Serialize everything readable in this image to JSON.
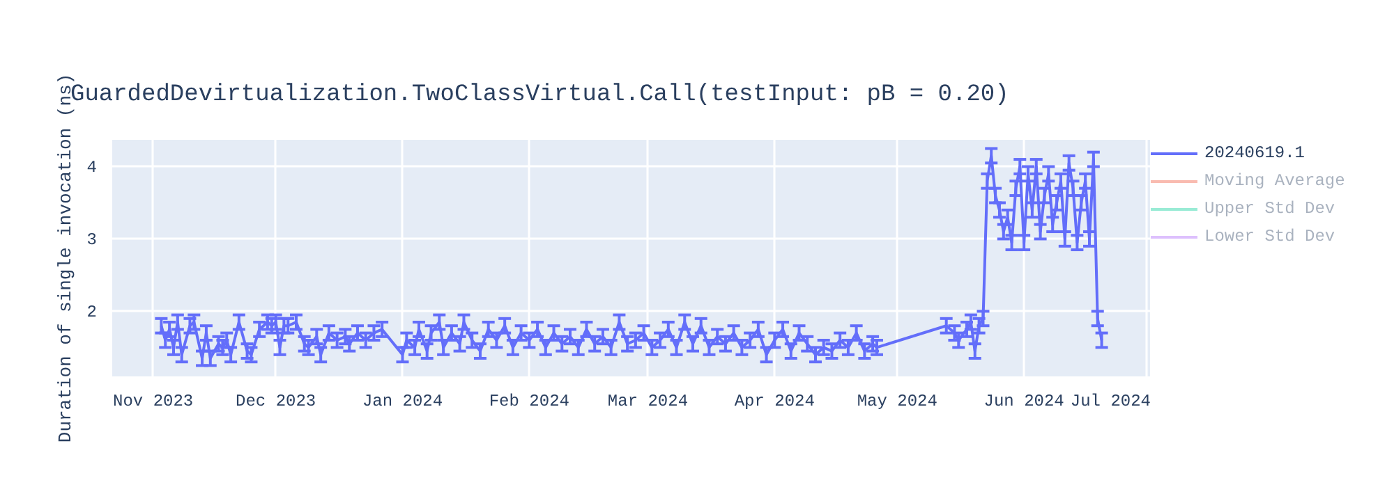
{
  "chart_data": {
    "type": "line",
    "title": "GuardedDevirtualization.TwoClassVirtual.Call(testInput: pB = 0.20)",
    "ylabel": "Duration of single invocation (ns)",
    "xlim": [
      "2023-10-22",
      "2024-07-02"
    ],
    "ylim": [
      1.1,
      4.37
    ],
    "yticks": [
      2,
      3,
      4
    ],
    "xticks": [
      {
        "value": "2023-11-01",
        "label": "Nov 2023"
      },
      {
        "value": "2023-12-01",
        "label": "Dec 2023"
      },
      {
        "value": "2024-01-01",
        "label": "Jan 2024"
      },
      {
        "value": "2024-02-01",
        "label": "Feb 2024"
      },
      {
        "value": "2024-03-01",
        "label": "Mar 2024"
      },
      {
        "value": "2024-04-01",
        "label": "Apr 2024"
      },
      {
        "value": "2024-05-01",
        "label": "May 2024"
      },
      {
        "value": "2024-06-01",
        "label": "Jun 2024"
      },
      {
        "value": "2024-07-01",
        "label": "Jul 2024"
      }
    ],
    "grid": true,
    "legend": "right",
    "marker": "none",
    "line_style": "solid",
    "x": [
      "2023-11-03",
      "2023-11-04",
      "2023-11-05",
      "2023-11-06",
      "2023-11-07",
      "2023-11-08",
      "2023-11-10",
      "2023-11-11",
      "2023-11-13",
      "2023-11-14",
      "2023-11-15",
      "2023-11-17",
      "2023-11-18",
      "2023-11-19",
      "2023-11-20",
      "2023-11-22",
      "2023-11-24",
      "2023-11-25",
      "2023-11-27",
      "2023-11-29",
      "2023-11-30",
      "2023-12-01",
      "2023-12-02",
      "2023-12-03",
      "2023-12-04",
      "2023-12-06",
      "2023-12-08",
      "2023-12-09",
      "2023-12-11",
      "2023-12-12",
      "2023-12-14",
      "2023-12-16",
      "2023-12-18",
      "2023-12-19",
      "2023-12-21",
      "2023-12-23",
      "2023-12-25",
      "2023-12-27",
      "2024-01-01",
      "2024-01-02",
      "2024-01-04",
      "2024-01-05",
      "2024-01-07",
      "2024-01-08",
      "2024-01-10",
      "2024-01-11",
      "2024-01-13",
      "2024-01-15",
      "2024-01-16",
      "2024-01-18",
      "2024-01-20",
      "2024-01-22",
      "2024-01-24",
      "2024-01-26",
      "2024-01-28",
      "2024-01-30",
      "2024-02-01",
      "2024-02-03",
      "2024-02-05",
      "2024-02-07",
      "2024-02-09",
      "2024-02-11",
      "2024-02-13",
      "2024-02-15",
      "2024-02-17",
      "2024-02-19",
      "2024-02-21",
      "2024-02-23",
      "2024-02-25",
      "2024-02-27",
      "2024-02-29",
      "2024-03-02",
      "2024-03-04",
      "2024-03-06",
      "2024-03-08",
      "2024-03-10",
      "2024-03-12",
      "2024-03-14",
      "2024-03-16",
      "2024-03-18",
      "2024-03-20",
      "2024-03-22",
      "2024-03-24",
      "2024-03-26",
      "2024-03-28",
      "2024-03-30",
      "2024-04-01",
      "2024-04-03",
      "2024-04-05",
      "2024-04-07",
      "2024-04-09",
      "2024-04-11",
      "2024-04-13",
      "2024-04-15",
      "2024-04-17",
      "2024-04-19",
      "2024-04-21",
      "2024-04-23",
      "2024-04-25",
      "2024-04-26",
      "2024-05-13",
      "2024-05-15",
      "2024-05-16",
      "2024-05-18",
      "2024-05-19",
      "2024-05-20",
      "2024-05-21",
      "2024-05-22",
      "2024-05-23",
      "2024-05-24",
      "2024-05-25",
      "2024-05-26",
      "2024-05-27",
      "2024-05-28",
      "2024-05-29",
      "2024-05-30",
      "2024-05-31",
      "2024-06-01",
      "2024-06-02",
      "2024-06-03",
      "2024-06-04",
      "2024-06-05",
      "2024-06-06",
      "2024-06-07",
      "2024-06-08",
      "2024-06-09",
      "2024-06-10",
      "2024-06-11",
      "2024-06-12",
      "2024-06-13",
      "2024-06-14",
      "2024-06-15",
      "2024-06-16",
      "2024-06-17",
      "2024-06-18",
      "2024-06-19",
      "2024-06-20"
    ],
    "series": [
      {
        "name": "20240619.1",
        "color": "#636efa",
        "values": [
          1.8,
          1.6,
          1.75,
          1.5,
          1.85,
          1.4,
          1.8,
          1.85,
          1.35,
          1.7,
          1.35,
          1.55,
          1.5,
          1.6,
          1.4,
          1.85,
          1.45,
          1.4,
          1.75,
          1.85,
          1.8,
          1.85,
          1.5,
          1.8,
          1.8,
          1.85,
          1.55,
          1.5,
          1.65,
          1.4,
          1.7,
          1.6,
          1.65,
          1.55,
          1.7,
          1.6,
          1.7,
          1.75,
          1.4,
          1.6,
          1.5,
          1.75,
          1.45,
          1.7,
          1.85,
          1.5,
          1.7,
          1.55,
          1.85,
          1.6,
          1.45,
          1.75,
          1.6,
          1.8,
          1.5,
          1.7,
          1.6,
          1.75,
          1.5,
          1.7,
          1.55,
          1.65,
          1.5,
          1.75,
          1.55,
          1.65,
          1.5,
          1.85,
          1.55,
          1.6,
          1.7,
          1.5,
          1.6,
          1.75,
          1.5,
          1.85,
          1.55,
          1.8,
          1.5,
          1.65,
          1.55,
          1.7,
          1.5,
          1.6,
          1.75,
          1.4,
          1.6,
          1.75,
          1.45,
          1.7,
          1.55,
          1.4,
          1.5,
          1.45,
          1.6,
          1.5,
          1.7,
          1.45,
          1.55,
          1.5,
          1.8,
          1.7,
          1.6,
          1.75,
          1.85,
          1.45,
          1.8,
          1.9,
          3.8,
          4.15,
          3.6,
          3.4,
          3.1,
          3.3,
          2.95,
          3.7,
          4.0,
          2.95,
          3.9,
          3.4,
          4.0,
          3.1,
          3.6,
          3.9,
          3.2,
          3.5,
          3.8,
          3.0,
          4.05,
          3.7,
          2.95,
          3.5,
          3.8,
          3.0,
          4.1,
          1.9,
          1.6
        ],
        "errors": [
          0.1,
          0.1,
          0.1,
          0.1,
          0.1,
          0.1,
          0.1,
          0.1,
          0.1,
          0.1,
          0.1,
          0.1,
          0.1,
          0.1,
          0.1,
          0.1,
          0.1,
          0.1,
          0.1,
          0.1,
          0.1,
          0.1,
          0.1,
          0.1,
          0.1,
          0.1,
          0.1,
          0.1,
          0.1,
          0.1,
          0.1,
          0.1,
          0.1,
          0.1,
          0.1,
          0.1,
          0.1,
          0.1,
          0.1,
          0.1,
          0.1,
          0.1,
          0.1,
          0.1,
          0.1,
          0.1,
          0.1,
          0.1,
          0.1,
          0.1,
          0.1,
          0.1,
          0.1,
          0.1,
          0.1,
          0.1,
          0.1,
          0.1,
          0.1,
          0.1,
          0.1,
          0.1,
          0.1,
          0.1,
          0.1,
          0.1,
          0.1,
          0.1,
          0.1,
          0.1,
          0.1,
          0.1,
          0.1,
          0.1,
          0.1,
          0.1,
          0.1,
          0.1,
          0.1,
          0.1,
          0.1,
          0.1,
          0.1,
          0.1,
          0.1,
          0.1,
          0.1,
          0.1,
          0.1,
          0.1,
          0.1,
          0.1,
          0.1,
          0.1,
          0.1,
          0.1,
          0.1,
          0.1,
          0.1,
          0.1,
          0.1,
          0.1,
          0.1,
          0.1,
          0.1,
          0.1,
          0.1,
          0.1,
          0.1,
          0.1,
          0.1,
          0.1,
          0.1,
          0.1,
          0.1,
          0.1,
          0.1,
          0.1,
          0.1,
          0.1,
          0.1,
          0.1,
          0.1,
          0.1,
          0.1,
          0.1,
          0.1,
          0.1,
          0.1,
          0.1,
          0.1,
          0.1,
          0.1,
          0.1,
          0.1,
          0.1,
          0.1
        ]
      },
      {
        "name": "Moving Average",
        "color": "#ef553b",
        "values": [
          null,
          null,
          null,
          null,
          null,
          null,
          null,
          null,
          null,
          null,
          null,
          null,
          null,
          null,
          null,
          null,
          null,
          null,
          null,
          null,
          null,
          null,
          null,
          null,
          null,
          null,
          null,
          null,
          null,
          null,
          null,
          null,
          null,
          null,
          null,
          null,
          null,
          null,
          null,
          null,
          null,
          null,
          null,
          null,
          null,
          null,
          null,
          null,
          null,
          null,
          null,
          null,
          null,
          null,
          null,
          null,
          null,
          null,
          null,
          null,
          null,
          null,
          null,
          null,
          null,
          null,
          null,
          null,
          null,
          null,
          null,
          null,
          null,
          null,
          null,
          null,
          null,
          null,
          null,
          null,
          null,
          null,
          null,
          null,
          null,
          null,
          null,
          null,
          null,
          null,
          null,
          null,
          null,
          null,
          null,
          null,
          null,
          null,
          null,
          null,
          null,
          null,
          null,
          null,
          null,
          null,
          null,
          null,
          null,
          null,
          null,
          null,
          null,
          null,
          null,
          null,
          null,
          null,
          null,
          null,
          null,
          null,
          null,
          null,
          null,
          null,
          null,
          null,
          null,
          null,
          null,
          null,
          null,
          null,
          null,
          null,
          null
        ]
      },
      {
        "name": "Upper Std Dev",
        "color": "#00cc96",
        "values": [
          null,
          null,
          null,
          null,
          null,
          null,
          null,
          null,
          null,
          null,
          null,
          null,
          null,
          null,
          null,
          null,
          null,
          null,
          null,
          null,
          null,
          null,
          null,
          null,
          null,
          null,
          null,
          null,
          null,
          null,
          null,
          null,
          null,
          null,
          null,
          null,
          null,
          null,
          null,
          null,
          null,
          null,
          null,
          null,
          null,
          null,
          null,
          null,
          null,
          null,
          null,
          null,
          null,
          null,
          null,
          null,
          null,
          null,
          null,
          null,
          null,
          null,
          null,
          null,
          null,
          null,
          null,
          null,
          null,
          null,
          null,
          null,
          null,
          null,
          null,
          null,
          null,
          null,
          null,
          null,
          null,
          null,
          null,
          null,
          null,
          null,
          null,
          null,
          null,
          null,
          null,
          null,
          null,
          null,
          null,
          null,
          null,
          null,
          null,
          null,
          null,
          null,
          null,
          null,
          null,
          null,
          null,
          null,
          null,
          null,
          null,
          null,
          null,
          null,
          null,
          null,
          null,
          null,
          null,
          null,
          null,
          null,
          null,
          null,
          null,
          null,
          null,
          null,
          null,
          null,
          null,
          null,
          null,
          null,
          null,
          null,
          null
        ]
      },
      {
        "name": "Lower Std Dev",
        "color": "#ab63fa",
        "values": [
          null,
          null,
          null,
          null,
          null,
          null,
          null,
          null,
          null,
          null,
          null,
          null,
          null,
          null,
          null,
          null,
          null,
          null,
          null,
          null,
          null,
          null,
          null,
          null,
          null,
          null,
          null,
          null,
          null,
          null,
          null,
          null,
          null,
          null,
          null,
          null,
          null,
          null,
          null,
          null,
          null,
          null,
          null,
          null,
          null,
          null,
          null,
          null,
          null,
          null,
          null,
          null,
          null,
          null,
          null,
          null,
          null,
          null,
          null,
          null,
          null,
          null,
          null,
          null,
          null,
          null,
          null,
          null,
          null,
          null,
          null,
          null,
          null,
          null,
          null,
          null,
          null,
          null,
          null,
          null,
          null,
          null,
          null,
          null,
          null,
          null,
          null,
          null,
          null,
          null,
          null,
          null,
          null,
          null,
          null,
          null,
          null,
          null,
          null,
          null,
          null,
          null,
          null,
          null,
          null,
          null,
          null,
          null,
          null,
          null,
          null,
          null,
          null,
          null,
          null,
          null,
          null,
          null,
          null,
          null,
          null,
          null,
          null,
          null,
          null,
          null,
          null,
          null,
          null,
          null,
          null,
          null,
          null,
          null,
          null,
          null,
          null
        ]
      }
    ]
  }
}
